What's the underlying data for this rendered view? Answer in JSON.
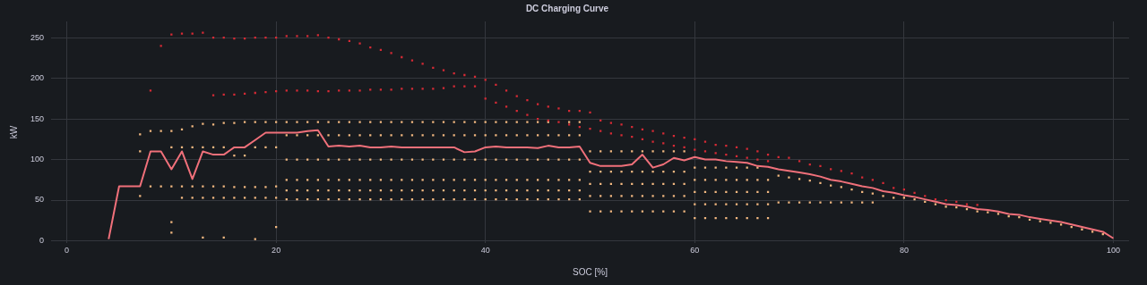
{
  "chart_data": {
    "type": "scatter",
    "title": "DC Charging Curve",
    "xlabel": "SOC [%]",
    "ylabel": "kW",
    "xlim": [
      -1.5,
      101.5
    ],
    "ylim": [
      -3,
      270
    ],
    "xticks": [
      0,
      20,
      40,
      60,
      80,
      100
    ],
    "yticks": [
      0,
      50,
      100,
      150,
      200,
      250
    ],
    "grid": true,
    "legend": false,
    "marker": "square",
    "series": [
      {
        "color": "#d62a35",
        "x": [
          8,
          9,
          10,
          11,
          12,
          13,
          14,
          15,
          16,
          17,
          18,
          19,
          20,
          21,
          22,
          23,
          24,
          25,
          26,
          27,
          28,
          29,
          30,
          31,
          32,
          33,
          34,
          35,
          36,
          37,
          38,
          39,
          40,
          41,
          42,
          43,
          44,
          45,
          46,
          47,
          48,
          49,
          50,
          51,
          52,
          53,
          54,
          55,
          56,
          57,
          58,
          59,
          60,
          61,
          62,
          63,
          64,
          65,
          66,
          67,
          68,
          69,
          70,
          71,
          72,
          73,
          74,
          75,
          76,
          77,
          78,
          79,
          80,
          81,
          82,
          83,
          84,
          85,
          86,
          87
        ],
        "values": [
          185,
          240,
          254,
          255,
          255,
          256,
          250,
          250,
          249,
          249,
          250,
          250,
          250,
          252,
          252,
          252,
          253,
          250,
          248,
          246,
          243,
          238,
          235,
          231,
          226,
          222,
          218,
          213,
          210,
          206,
          204,
          202,
          198,
          192,
          185,
          178,
          173,
          168,
          165,
          163,
          160,
          160,
          158,
          148,
          145,
          143,
          140,
          137,
          135,
          132,
          129,
          127,
          125,
          122,
          118,
          117,
          115,
          113,
          110,
          106,
          103,
          102,
          98,
          94,
          92,
          88,
          86,
          83,
          78,
          75,
          71,
          65,
          63,
          59,
          55,
          51,
          50,
          48,
          45,
          44
        ]
      },
      {
        "color": "#d62a35",
        "x": [
          14,
          15,
          16,
          17,
          18,
          19,
          20,
          21,
          22,
          23,
          24,
          25,
          26,
          27,
          28,
          29,
          30,
          31,
          32,
          33,
          34,
          35,
          36,
          37,
          38,
          39
        ],
        "values": [
          179,
          180,
          180,
          181,
          182,
          183,
          184,
          185,
          185,
          185,
          184,
          184,
          185,
          185,
          185,
          186,
          186,
          186,
          187,
          187,
          187,
          187,
          188,
          190,
          190,
          190
        ]
      },
      {
        "color": "#d62a35",
        "x": [
          40,
          41,
          42,
          43,
          44,
          45,
          46,
          47,
          48,
          49,
          50,
          51,
          52,
          53,
          54,
          55,
          56,
          57,
          58,
          59,
          60,
          61,
          62,
          63,
          64,
          65,
          66,
          67
        ],
        "values": [
          175,
          170,
          165,
          160,
          155,
          150,
          148,
          146,
          143,
          140,
          138,
          135,
          132,
          130,
          128,
          125,
          122,
          120,
          117,
          115,
          112,
          110,
          108,
          106,
          104,
          102,
          100,
          98
        ]
      },
      {
        "color": "#f2b880",
        "x": [
          7,
          7,
          7,
          8,
          8,
          9,
          9,
          10,
          10,
          10,
          10,
          10,
          11,
          11,
          11,
          11,
          12,
          12,
          12,
          12,
          13,
          13,
          13,
          13,
          13,
          14,
          14,
          14,
          14,
          15,
          15,
          15,
          15,
          15,
          16,
          16,
          16,
          16,
          17,
          17,
          17,
          17,
          18,
          18,
          18,
          18,
          18,
          19,
          19,
          19,
          19,
          20,
          20,
          20,
          20,
          20
        ],
        "values": [
          131,
          110,
          55,
          135,
          67,
          135,
          67,
          135,
          115,
          67,
          23,
          10,
          137,
          115,
          67,
          53,
          141,
          115,
          67,
          53,
          144,
          115,
          67,
          53,
          4,
          143,
          115,
          67,
          53,
          145,
          115,
          67,
          53,
          4,
          145,
          105,
          66,
          53,
          146,
          105,
          66,
          53,
          146,
          115,
          66,
          53,
          2,
          146,
          115,
          66,
          53,
          146,
          115,
          67,
          53,
          17
        ]
      },
      {
        "color": "#f2b880",
        "x": [
          21,
          22,
          23,
          24,
          25,
          26,
          27,
          28,
          29,
          30,
          31,
          32,
          33,
          34,
          35,
          36,
          37,
          38,
          39,
          40,
          41,
          42,
          43,
          44,
          45,
          46,
          48,
          49
        ],
        "values": [
          146,
          146,
          146,
          146,
          146,
          146,
          146,
          146,
          146,
          146,
          146,
          146,
          146,
          146,
          146,
          146,
          146,
          146,
          146,
          146,
          146,
          146,
          146,
          146,
          146,
          146,
          146,
          146
        ]
      },
      {
        "color": "#f2b880",
        "x": [
          21,
          22,
          23,
          24,
          25,
          26,
          27,
          28,
          29,
          30,
          31,
          32,
          33,
          34,
          35,
          36,
          37,
          38,
          39,
          40,
          41,
          42,
          43,
          44,
          45,
          46,
          47,
          48,
          49
        ],
        "values": [
          130,
          130,
          130,
          130,
          130,
          130,
          130,
          130,
          130,
          130,
          130,
          130,
          130,
          130,
          130,
          130,
          130,
          130,
          130,
          130,
          130,
          130,
          130,
          130,
          130,
          130,
          130,
          130,
          130
        ]
      },
      {
        "color": "#f2b880",
        "x": [
          21,
          22,
          23,
          24,
          25,
          26,
          27,
          28,
          29,
          30,
          31,
          32,
          33,
          34,
          35,
          36,
          37,
          38,
          39,
          40,
          41,
          42,
          43,
          44,
          45,
          46,
          47,
          48,
          49
        ],
        "values": [
          100,
          100,
          100,
          100,
          100,
          100,
          100,
          100,
          100,
          100,
          100,
          100,
          100,
          100,
          100,
          100,
          100,
          100,
          100,
          100,
          100,
          100,
          100,
          100,
          100,
          100,
          100,
          100,
          100
        ]
      },
      {
        "color": "#f2b880",
        "x": [
          21,
          22,
          23,
          24,
          25,
          26,
          27,
          28,
          29,
          30,
          31,
          32,
          33,
          34,
          35,
          36,
          37,
          38,
          39,
          40,
          41,
          42,
          43,
          44,
          45,
          46,
          47,
          48,
          49
        ],
        "values": [
          75,
          75,
          75,
          75,
          75,
          75,
          75,
          75,
          75,
          75,
          75,
          75,
          75,
          75,
          75,
          75,
          75,
          75,
          75,
          75,
          75,
          75,
          75,
          75,
          75,
          75,
          75,
          75,
          75
        ]
      },
      {
        "color": "#f2b880",
        "x": [
          21,
          22,
          23,
          24,
          25,
          26,
          27,
          28,
          29,
          30,
          31,
          32,
          33,
          34,
          35,
          36,
          37,
          38,
          39,
          40,
          41,
          42,
          43,
          44,
          45,
          46,
          47,
          48,
          49
        ],
        "values": [
          62,
          62,
          62,
          62,
          62,
          62,
          62,
          62,
          62,
          62,
          62,
          62,
          62,
          62,
          62,
          62,
          62,
          62,
          62,
          62,
          62,
          62,
          62,
          62,
          62,
          62,
          62,
          62,
          62
        ]
      },
      {
        "color": "#f2b880",
        "x": [
          21,
          22,
          23,
          24,
          25,
          26,
          27,
          28,
          29,
          30,
          31,
          32,
          33,
          34,
          35,
          36,
          37,
          38,
          39,
          40,
          41,
          42,
          43,
          44,
          45,
          46,
          47,
          48,
          49
        ],
        "values": [
          51,
          51,
          51,
          51,
          51,
          51,
          51,
          51,
          51,
          51,
          51,
          51,
          51,
          51,
          51,
          51,
          51,
          51,
          51,
          51,
          51,
          51,
          51,
          51,
          51,
          51,
          51,
          51,
          51
        ]
      },
      {
        "color": "#f2b880",
        "x": [
          50,
          51,
          52,
          53,
          54,
          55,
          56,
          57,
          58,
          59,
          50,
          51,
          52,
          53,
          54,
          55,
          56,
          57,
          58,
          59,
          50,
          51,
          52,
          53,
          54,
          55,
          56,
          57,
          58,
          59,
          50,
          51,
          52,
          53,
          54,
          55,
          56,
          57,
          58,
          59,
          50,
          51,
          52,
          53,
          54,
          55,
          56,
          57,
          58,
          59
        ],
        "values": [
          110,
          110,
          110,
          110,
          110,
          110,
          110,
          110,
          110,
          110,
          85,
          85,
          85,
          85,
          85,
          85,
          85,
          85,
          85,
          85,
          70,
          70,
          70,
          70,
          70,
          70,
          70,
          70,
          70,
          70,
          55,
          55,
          55,
          55,
          55,
          55,
          55,
          55,
          55,
          55,
          36,
          36,
          36,
          36,
          36,
          36,
          36,
          36,
          36,
          36
        ]
      },
      {
        "color": "#f2b880",
        "x": [
          60,
          61,
          62,
          63,
          64,
          65,
          66,
          60,
          61,
          62,
          63,
          64,
          65,
          66,
          67,
          60,
          61,
          62,
          63,
          64,
          65,
          66,
          67,
          60,
          61,
          62,
          63,
          64,
          65,
          66,
          67,
          60,
          61,
          62,
          63,
          64,
          65,
          66,
          67
        ],
        "values": [
          90,
          90,
          90,
          90,
          90,
          90,
          90,
          75,
          75,
          75,
          75,
          75,
          75,
          75,
          75,
          60,
          60,
          60,
          60,
          60,
          60,
          60,
          60,
          45,
          45,
          45,
          45,
          45,
          45,
          45,
          45,
          28,
          28,
          28,
          28,
          28,
          28,
          28,
          28
        ]
      },
      {
        "color": "#f2b880",
        "x": [
          68,
          69,
          70,
          71,
          72,
          73,
          74,
          75,
          76,
          77,
          78,
          79,
          80,
          81,
          82,
          83,
          84,
          85,
          86,
          87,
          88,
          89,
          90,
          91,
          92,
          93,
          94,
          95,
          96,
          97,
          98,
          99
        ],
        "values": [
          80,
          78,
          76,
          74,
          71,
          68,
          66,
          63,
          60,
          58,
          55,
          53,
          53,
          51,
          48,
          45,
          42,
          41,
          39,
          36,
          35,
          33,
          30,
          29,
          26,
          24,
          22,
          20,
          17,
          14,
          11,
          8
        ]
      },
      {
        "color": "#f2b880",
        "x": [
          68,
          69,
          70,
          71,
          72,
          73,
          74,
          75,
          76,
          77
        ],
        "values": [
          47,
          47,
          47,
          47,
          47,
          47,
          47,
          47,
          47,
          47
        ]
      },
      {
        "type": "line",
        "color": "#f0707a",
        "line_style": "solid",
        "marker": "none",
        "x": [
          4,
          5,
          6,
          7,
          8,
          9,
          10,
          11,
          12,
          13,
          14,
          15,
          16,
          17,
          18,
          19,
          20,
          21,
          22,
          23,
          24,
          25,
          26,
          27,
          28,
          29,
          30,
          31,
          32,
          33,
          34,
          35,
          36,
          37,
          38,
          39,
          40,
          41,
          42,
          43,
          44,
          45,
          46,
          47,
          48,
          49,
          50,
          51,
          52,
          53,
          54,
          55,
          56,
          57,
          58,
          59,
          60,
          61,
          62,
          63,
          64,
          65,
          66,
          67,
          68,
          69,
          70,
          71,
          72,
          73,
          74,
          75,
          76,
          77,
          78,
          79,
          80,
          81,
          82,
          83,
          84,
          85,
          86,
          87,
          88,
          89,
          90,
          91,
          92,
          93,
          94,
          95,
          96,
          97,
          98,
          99,
          100
        ],
        "values": [
          2,
          67,
          67,
          67,
          110,
          110,
          88,
          110,
          76,
          110,
          106,
          106,
          115,
          115,
          124,
          133,
          133,
          133,
          133,
          135,
          136,
          116,
          117,
          116,
          117,
          115,
          115,
          116,
          115,
          115,
          115,
          115,
          115,
          115,
          109,
          110,
          115,
          116,
          115,
          115,
          115,
          114,
          117,
          115,
          115,
          116,
          96,
          92,
          92,
          92,
          94,
          106,
          90,
          94,
          102,
          99,
          103,
          100,
          100,
          98,
          97,
          96,
          92,
          91,
          88,
          86,
          84,
          82,
          79,
          75,
          73,
          70,
          67,
          65,
          61,
          59,
          56,
          54,
          51,
          48,
          45,
          44,
          42,
          39,
          38,
          36,
          33,
          32,
          29,
          27,
          25,
          23,
          20,
          17,
          14,
          11,
          3
        ]
      }
    ]
  }
}
